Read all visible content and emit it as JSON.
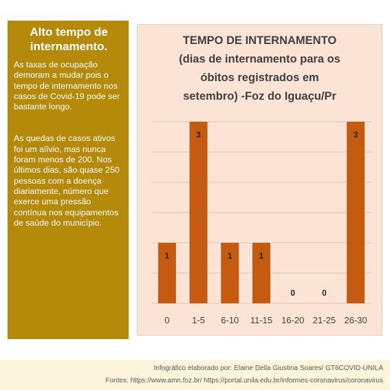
{
  "sidebar": {
    "title_line1": "Alto tempo de",
    "title_line2": "internamento.",
    "paragraph1": "As taxas de ocupação demoram a mudar pois o tempo de internamento nos casos de Covid-19 pode ser bastante longo.",
    "paragraph2": "As quedas de casos ativos foi um alívio, mas nunca foram menos de 200. Nos últimos dias, são quase 250 pessoas com a doença diariamente, número que exerce uma pressão contínua nos equipamentos de saúde do município."
  },
  "chart_data": {
    "type": "bar",
    "title_lines": [
      "TEMPO DE INTERNAMENTO",
      "(dias de internamento para os",
      "óbitos registrados em",
      "setembro) -Foz do Iguaçu/Pr"
    ],
    "categories": [
      "0",
      "1-5",
      "6-10",
      "11-15",
      "16-20",
      "21-25",
      "26-30"
    ],
    "values": [
      1,
      3,
      1,
      1,
      0,
      0,
      3
    ],
    "ylim": [
      0,
      3
    ],
    "grid": true,
    "bar_color": "#c55a11"
  },
  "footer": {
    "credit": "Infográfico elaborado por: Elaine Della Giustina Soares/ GT6COVID-UNILA",
    "sources": "Fontes: https://www.amn.foz.br/   https://portal.unila.edu.br/informes-coronavirus/coronavirus"
  }
}
